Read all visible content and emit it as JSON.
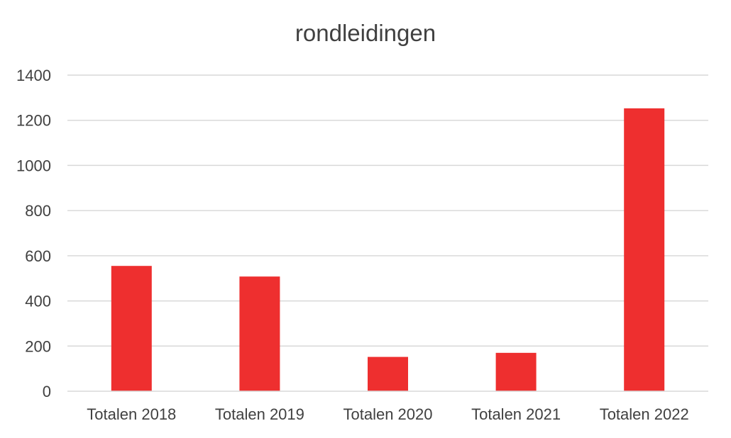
{
  "chart_data": {
    "type": "bar",
    "title": "rondleidingen",
    "categories": [
      "Totalen 2018",
      "Totalen 2019",
      "Totalen 2020",
      "Totalen 2021",
      "Totalen 2022"
    ],
    "values": [
      555,
      508,
      152,
      170,
      1253
    ],
    "ylim": [
      0,
      1400
    ],
    "yticks": [
      0,
      200,
      400,
      600,
      800,
      1000,
      1200,
      1400
    ],
    "grid": true,
    "legend": "none",
    "bar_color": "#ee2f2f",
    "grid_color": "#d9d9d9"
  }
}
